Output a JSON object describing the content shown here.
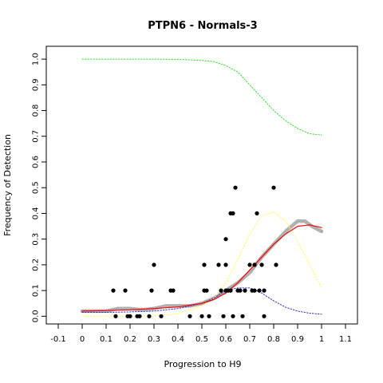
{
  "chart_data": {
    "type": "scatter",
    "title": "PTPN6 - Normals-3",
    "xlabel": "Progression to H9",
    "ylabel": "Frequency of Detection",
    "xlim": [
      -0.15,
      1.15
    ],
    "ylim": [
      -0.03,
      1.05
    ],
    "xticks": [
      "-0.1",
      "0",
      "0.1",
      "0.2",
      "0.3",
      "0.4",
      "0.5",
      "0.6",
      "0.7",
      "0.8",
      "0.9",
      "1",
      "1.1"
    ],
    "xtick_values": [
      -0.1,
      0,
      0.1,
      0.2,
      0.3,
      0.4,
      0.5,
      0.6,
      0.7,
      0.8,
      0.9,
      1.0,
      1.1
    ],
    "yticks": [
      "0.0",
      "0.1",
      "0.2",
      "0.3",
      "0.4",
      "0.5",
      "0.6",
      "0.7",
      "0.8",
      "0.9",
      "1.0"
    ],
    "ytick_values": [
      0,
      0.1,
      0.2,
      0.3,
      0.4,
      0.5,
      0.6,
      0.7,
      0.8,
      0.9,
      1.0
    ],
    "grid": false,
    "colors": {
      "points": "#000000",
      "smooth": "#b0b0b0",
      "fit": "#ff0000",
      "green": "#33dd33",
      "yellow": "#ffff66",
      "blue": "#3333cc"
    },
    "points": [
      [
        0.13,
        0.1
      ],
      [
        0.14,
        0.0
      ],
      [
        0.18,
        0.1
      ],
      [
        0.19,
        0.0
      ],
      [
        0.2,
        0.0
      ],
      [
        0.23,
        0.0
      ],
      [
        0.24,
        0.0
      ],
      [
        0.28,
        0.0
      ],
      [
        0.29,
        0.1
      ],
      [
        0.3,
        0.2
      ],
      [
        0.33,
        0.0
      ],
      [
        0.37,
        0.1
      ],
      [
        0.38,
        0.1
      ],
      [
        0.45,
        0.0
      ],
      [
        0.5,
        0.0
      ],
      [
        0.51,
        0.1
      ],
      [
        0.51,
        0.2
      ],
      [
        0.52,
        0.1
      ],
      [
        0.53,
        0.0
      ],
      [
        0.57,
        0.2
      ],
      [
        0.58,
        0.1
      ],
      [
        0.59,
        0.0
      ],
      [
        0.6,
        0.1
      ],
      [
        0.6,
        0.2
      ],
      [
        0.6,
        0.3
      ],
      [
        0.61,
        0.1
      ],
      [
        0.62,
        0.1
      ],
      [
        0.62,
        0.4
      ],
      [
        0.63,
        0.0
      ],
      [
        0.63,
        0.4
      ],
      [
        0.64,
        0.5
      ],
      [
        0.65,
        0.1
      ],
      [
        0.66,
        0.1
      ],
      [
        0.67,
        0.0
      ],
      [
        0.68,
        0.1
      ],
      [
        0.7,
        0.2
      ],
      [
        0.71,
        0.1
      ],
      [
        0.72,
        0.1
      ],
      [
        0.72,
        0.2
      ],
      [
        0.73,
        0.4
      ],
      [
        0.74,
        0.1
      ],
      [
        0.75,
        0.2
      ],
      [
        0.76,
        0.0
      ],
      [
        0.76,
        0.1
      ],
      [
        0.8,
        0.5
      ],
      [
        0.81,
        0.2
      ]
    ],
    "series": [
      {
        "style": "smooth-gray",
        "x": [
          0.0,
          0.1,
          0.15,
          0.2,
          0.25,
          0.3,
          0.35,
          0.4,
          0.45,
          0.5,
          0.55,
          0.6,
          0.65,
          0.7,
          0.75,
          0.8,
          0.85,
          0.9,
          0.93,
          0.96,
          1.0
        ],
        "y": [
          0.02,
          0.02,
          0.03,
          0.03,
          0.025,
          0.03,
          0.04,
          0.04,
          0.04,
          0.05,
          0.07,
          0.1,
          0.13,
          0.17,
          0.23,
          0.28,
          0.33,
          0.37,
          0.37,
          0.35,
          0.33
        ]
      },
      {
        "style": "fit-red",
        "x": [
          0.0,
          0.1,
          0.2,
          0.3,
          0.4,
          0.5,
          0.55,
          0.6,
          0.65,
          0.7,
          0.75,
          0.8,
          0.85,
          0.9,
          0.95,
          1.0
        ],
        "y": [
          0.02,
          0.022,
          0.025,
          0.03,
          0.036,
          0.05,
          0.065,
          0.09,
          0.13,
          0.18,
          0.23,
          0.28,
          0.32,
          0.35,
          0.355,
          0.345
        ]
      },
      {
        "style": "dotted-green",
        "x": [
          0.0,
          0.1,
          0.2,
          0.3,
          0.4,
          0.5,
          0.55,
          0.6,
          0.65,
          0.7,
          0.75,
          0.8,
          0.85,
          0.9,
          0.95,
          1.0
        ],
        "y": [
          1.0,
          1.0,
          1.0,
          1.0,
          0.999,
          0.995,
          0.99,
          0.975,
          0.95,
          0.9,
          0.85,
          0.8,
          0.76,
          0.73,
          0.71,
          0.705
        ]
      },
      {
        "style": "dotted-yellow",
        "x": [
          0.0,
          0.1,
          0.2,
          0.3,
          0.4,
          0.5,
          0.55,
          0.6,
          0.65,
          0.7,
          0.75,
          0.8,
          0.85,
          0.9,
          0.95,
          1.0
        ],
        "y": [
          0.0,
          0.0,
          0.0,
          0.002,
          0.01,
          0.04,
          0.07,
          0.13,
          0.22,
          0.32,
          0.39,
          0.405,
          0.37,
          0.29,
          0.2,
          0.11
        ]
      },
      {
        "style": "dotted-blue",
        "x": [
          0.0,
          0.1,
          0.2,
          0.3,
          0.4,
          0.5,
          0.55,
          0.6,
          0.65,
          0.7,
          0.75,
          0.8,
          0.85,
          0.9,
          0.95,
          1.0
        ],
        "y": [
          0.015,
          0.015,
          0.017,
          0.02,
          0.03,
          0.05,
          0.07,
          0.1,
          0.11,
          0.11,
          0.09,
          0.06,
          0.035,
          0.02,
          0.012,
          0.008
        ]
      }
    ]
  }
}
